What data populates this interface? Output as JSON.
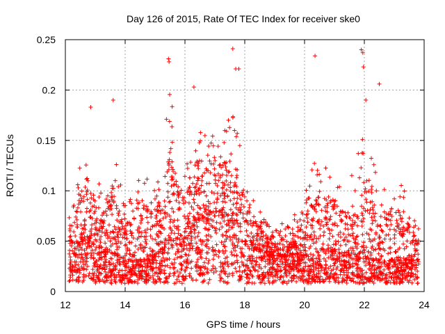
{
  "chart_data": {
    "type": "scatter",
    "title": "Day 126 of 2015, Rate Of TEC Index for receiver ske0",
    "xlabel": "GPS time / hours",
    "ylabel": "ROTI / TECUs",
    "xlim": [
      12,
      24
    ],
    "ylim": [
      0,
      0.25
    ],
    "xticks": [
      12,
      14,
      16,
      18,
      20,
      22,
      24
    ],
    "xtick_labels": [
      "12",
      "14",
      "16",
      "18",
      "20",
      "22",
      "24"
    ],
    "yticks": [
      0,
      0.05,
      0.1,
      0.15,
      0.2,
      0.25
    ],
    "ytick_labels": [
      "0",
      "0.05",
      "0.1",
      "0.15",
      "0.2",
      "0.25"
    ],
    "grid": true,
    "marker": "+",
    "color": "#ff0000",
    "envelope_note": "Dense scatter of ROTI samples; envelope of typical upper values per half hour",
    "envelope": {
      "x": [
        12.25,
        12.5,
        12.75,
        13.0,
        13.25,
        13.5,
        13.75,
        14.0,
        14.25,
        14.5,
        14.75,
        15.0,
        15.25,
        15.5,
        15.75,
        16.0,
        16.25,
        16.5,
        16.75,
        17.0,
        17.25,
        17.5,
        17.75,
        18.0,
        18.25,
        18.5,
        18.75,
        19.0,
        19.25,
        19.5,
        19.75,
        20.0,
        20.25,
        20.5,
        20.75,
        21.0,
        21.25,
        21.5,
        21.75,
        22.0,
        22.25,
        22.5,
        22.75,
        23.0,
        23.25,
        23.5,
        23.75
      ],
      "upper": [
        0.09,
        0.13,
        0.16,
        0.12,
        0.1,
        0.16,
        0.12,
        0.09,
        0.1,
        0.14,
        0.12,
        0.1,
        0.15,
        0.2,
        0.15,
        0.12,
        0.17,
        0.17,
        0.17,
        0.17,
        0.16,
        0.19,
        0.16,
        0.14,
        0.1,
        0.08,
        0.07,
        0.07,
        0.07,
        0.07,
        0.08,
        0.1,
        0.13,
        0.13,
        0.13,
        0.13,
        0.11,
        0.11,
        0.13,
        0.17,
        0.14,
        0.1,
        0.12,
        0.12,
        0.11,
        0.09,
        0.07
      ],
      "typical": [
        0.04,
        0.05,
        0.05,
        0.045,
        0.04,
        0.04,
        0.035,
        0.03,
        0.03,
        0.03,
        0.035,
        0.035,
        0.04,
        0.05,
        0.05,
        0.055,
        0.065,
        0.07,
        0.075,
        0.075,
        0.075,
        0.07,
        0.065,
        0.055,
        0.045,
        0.04,
        0.035,
        0.035,
        0.035,
        0.035,
        0.035,
        0.035,
        0.035,
        0.04,
        0.04,
        0.04,
        0.035,
        0.035,
        0.035,
        0.04,
        0.035,
        0.03,
        0.03,
        0.03,
        0.03,
        0.03,
        0.03
      ]
    },
    "notable_points": [
      {
        "x": 15.45,
        "y": 0.231
      },
      {
        "x": 15.47,
        "y": 0.228
      },
      {
        "x": 17.6,
        "y": 0.241
      },
      {
        "x": 17.7,
        "y": 0.221
      },
      {
        "x": 17.8,
        "y": 0.221
      },
      {
        "x": 16.3,
        "y": 0.203
      },
      {
        "x": 20.35,
        "y": 0.234
      },
      {
        "x": 21.9,
        "y": 0.24
      },
      {
        "x": 21.95,
        "y": 0.237
      },
      {
        "x": 21.97,
        "y": 0.223
      },
      {
        "x": 22.05,
        "y": 0.19
      },
      {
        "x": 22.5,
        "y": 0.206
      },
      {
        "x": 13.6,
        "y": 0.19
      },
      {
        "x": 12.85,
        "y": 0.183
      }
    ]
  }
}
